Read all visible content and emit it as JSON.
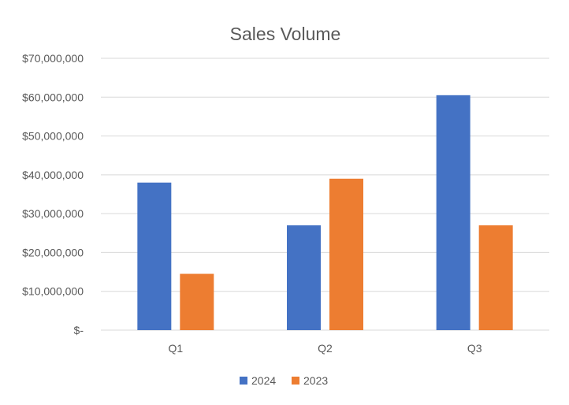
{
  "chart_data": {
    "type": "bar",
    "title": "Sales Volume",
    "categories": [
      "Q1",
      "Q2",
      "Q3"
    ],
    "series": [
      {
        "name": "2024",
        "color": "#4472C4",
        "values": [
          38000000,
          27000000,
          60500000
        ]
      },
      {
        "name": "2023",
        "color": "#ED7D31",
        "values": [
          14500000,
          39000000,
          27000000
        ]
      }
    ],
    "y_ticks": [
      0,
      10000000,
      20000000,
      30000000,
      40000000,
      50000000,
      60000000,
      70000000
    ],
    "y_tick_labels": [
      "$-",
      "$10,000,000",
      "$20,000,000",
      "$30,000,000",
      "$40,000,000",
      "$50,000,000",
      "$60,000,000",
      "$70,000,000"
    ],
    "ylim": [
      0,
      70000000
    ],
    "grid": true,
    "legend_position": "bottom",
    "colors": {
      "gridline": "#D9D9D9",
      "text": "#595959"
    }
  }
}
